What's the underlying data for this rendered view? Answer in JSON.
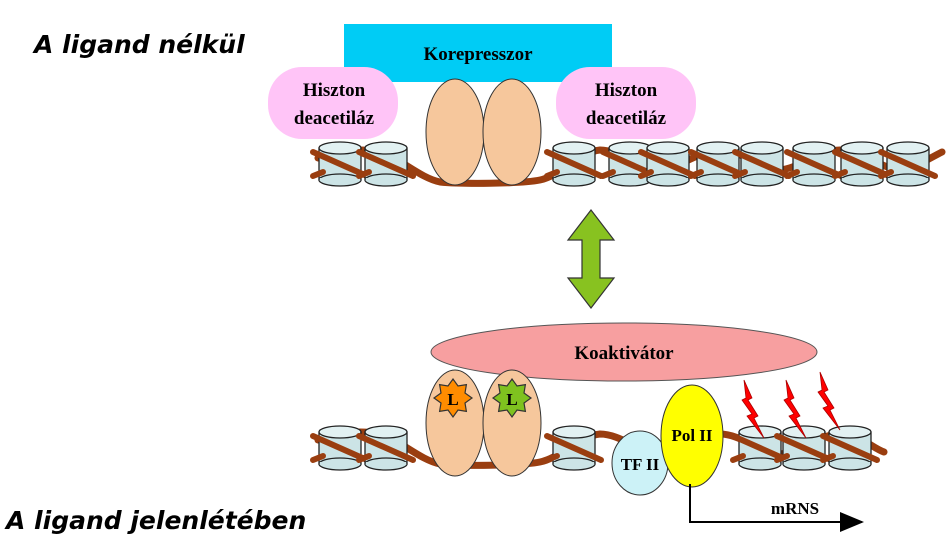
{
  "captions": {
    "top": "A ligand nélkül",
    "bottom": "A ligand jelenlétében"
  },
  "top_state": {
    "corepressor": "Korepresszor",
    "hdac_left": [
      "Hiszton",
      "deacetiláz"
    ],
    "hdac_right": [
      "Hiszton",
      "deacetiláz"
    ]
  },
  "bottom_state": {
    "coactivator": "Koaktivátor",
    "ligand_left": "L",
    "ligand_right": "L",
    "tf2": "TF II",
    "pol2": "Pol II",
    "mrna": "mRNS"
  },
  "colors": {
    "corepressor": "#00ccf5",
    "hdac": "#ffc4f7",
    "receptor": "#f6c79c",
    "coactivator": "#f79fa0",
    "dna": "#9a3e10",
    "nucleosome": "#cce4e6",
    "arrow": "#88c220",
    "tf2": "#ccf2f7",
    "pol2": "#ffff00",
    "ligand_left": "#ff8c00",
    "ligand_right": "#7fc21f",
    "lightning": "#ff0000"
  }
}
